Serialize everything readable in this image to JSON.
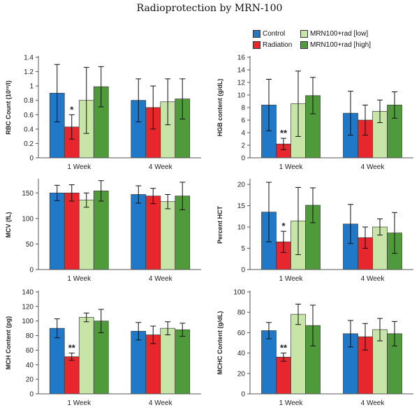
{
  "title": "Radioprotection by MRN-100",
  "legend": [
    {
      "label": "Control",
      "color": "#1f78c8"
    },
    {
      "label": "Radiation",
      "color": "#e8262e"
    },
    {
      "label": "MRN100+rad [low]",
      "color": "#c6e5a6"
    },
    {
      "label": "MRN100+rad [high]",
      "color": "#4f9a3a"
    }
  ],
  "chart_data": [
    {
      "type": "bar",
      "ylabel": "RBC Count  (10¹²/l)",
      "ylim": [
        0,
        1.4
      ],
      "yticks": [
        "0",
        "0.2",
        "0.4",
        "0.6",
        "0.8",
        "1",
        "1.2",
        "1.4"
      ],
      "categories": [
        "1 Week",
        "4 Week"
      ],
      "series": [
        {
          "name": "Control",
          "values": [
            0.9,
            0.8
          ],
          "errors": [
            0.4,
            0.3
          ]
        },
        {
          "name": "Radiation",
          "values": [
            0.43,
            0.7
          ],
          "errors": [
            0.17,
            0.3
          ]
        },
        {
          "name": "MRN100+rad [low]",
          "values": [
            0.8,
            0.78
          ],
          "errors": [
            0.46,
            0.32
          ]
        },
        {
          "name": "MRN100+rad [high]",
          "values": [
            0.99,
            0.82
          ],
          "errors": [
            0.28,
            0.28
          ]
        }
      ],
      "annotation": "*"
    },
    {
      "type": "bar",
      "ylabel": "HGB content (g/dL)",
      "ylim": [
        0,
        16
      ],
      "yticks": [
        "0",
        "2",
        "4",
        "6",
        "8",
        "10",
        "12",
        "14",
        "16"
      ],
      "categories": [
        "1 Week",
        "4 Week"
      ],
      "series": [
        {
          "name": "Control",
          "values": [
            8.4,
            7.1
          ],
          "errors": [
            4.1,
            3.5
          ]
        },
        {
          "name": "Radiation",
          "values": [
            2.2,
            6.0
          ],
          "errors": [
            0.9,
            2.4
          ]
        },
        {
          "name": "MRN100+rad [low]",
          "values": [
            8.6,
            7.4
          ],
          "errors": [
            5.2,
            1.8
          ]
        },
        {
          "name": "MRN100+rad [high]",
          "values": [
            9.9,
            8.4
          ],
          "errors": [
            2.9,
            2.1
          ]
        }
      ],
      "annotation": "**"
    },
    {
      "type": "bar",
      "ylabel": "MCV (fL)",
      "ylim": [
        0,
        175
      ],
      "yticks": [
        "0",
        "50",
        "100",
        "150"
      ],
      "categories": [
        "1 Week",
        "4 Week"
      ],
      "series": [
        {
          "name": "Control",
          "values": [
            150,
            147
          ],
          "errors": [
            15,
            17
          ]
        },
        {
          "name": "Radiation",
          "values": [
            150,
            144
          ],
          "errors": [
            16,
            15
          ]
        },
        {
          "name": "MRN100+rad [low]",
          "values": [
            136,
            133
          ],
          "errors": [
            14,
            14
          ]
        },
        {
          "name": "MRN100+rad [high]",
          "values": [
            154,
            144
          ],
          "errors": [
            20,
            27
          ]
        }
      ],
      "annotation": ""
    },
    {
      "type": "bar",
      "ylabel": "Percent HCT",
      "ylim": [
        0,
        21
      ],
      "yticks": [
        "0",
        "5",
        "10",
        "15",
        "20"
      ],
      "categories": [
        "1 Week",
        "4 Week"
      ],
      "series": [
        {
          "name": "Control",
          "values": [
            13.5,
            10.7
          ],
          "errors": [
            7.0,
            4.6
          ]
        },
        {
          "name": "Radiation",
          "values": [
            6.5,
            7.5
          ],
          "errors": [
            2.5,
            2.5
          ]
        },
        {
          "name": "MRN100+rad [low]",
          "values": [
            11.4,
            10.0
          ],
          "errors": [
            7.9,
            1.9
          ]
        },
        {
          "name": "MRN100+rad [high]",
          "values": [
            15.1,
            8.6
          ],
          "errors": [
            4.1,
            4.8
          ]
        }
      ],
      "annotation": "*"
    },
    {
      "type": "bar",
      "ylabel": "MCH Content (pg)",
      "ylim": [
        0,
        140
      ],
      "yticks": [
        "0",
        "20",
        "40",
        "60",
        "80",
        "100",
        "120",
        "140"
      ],
      "categories": [
        "1 Week",
        "4 Week"
      ],
      "series": [
        {
          "name": "Control",
          "values": [
            90,
            86
          ],
          "errors": [
            13,
            12
          ]
        },
        {
          "name": "Radiation",
          "values": [
            51,
            81
          ],
          "errors": [
            5,
            12
          ]
        },
        {
          "name": "MRN100+rad [low]",
          "values": [
            105,
            90
          ],
          "errors": [
            6,
            9
          ]
        },
        {
          "name": "MRN100+rad [high]",
          "values": [
            100,
            88
          ],
          "errors": [
            16,
            9
          ]
        }
      ],
      "annotation": "**"
    },
    {
      "type": "bar",
      "ylabel": "MCHC Content (g/dL)",
      "ylim": [
        0,
        100
      ],
      "yticks": [
        "0",
        "20",
        "40",
        "60",
        "80",
        "100"
      ],
      "categories": [
        "1 Week",
        "4 Week"
      ],
      "series": [
        {
          "name": "Control",
          "values": [
            62,
            59
          ],
          "errors": [
            8,
            13
          ]
        },
        {
          "name": "Radiation",
          "values": [
            36,
            56
          ],
          "errors": [
            4,
            13
          ]
        },
        {
          "name": "MRN100+rad [low]",
          "values": [
            78,
            63
          ],
          "errors": [
            10,
            11
          ]
        },
        {
          "name": "MRN100+rad [high]",
          "values": [
            67,
            59
          ],
          "errors": [
            20,
            12
          ]
        }
      ],
      "annotation": "**"
    }
  ]
}
